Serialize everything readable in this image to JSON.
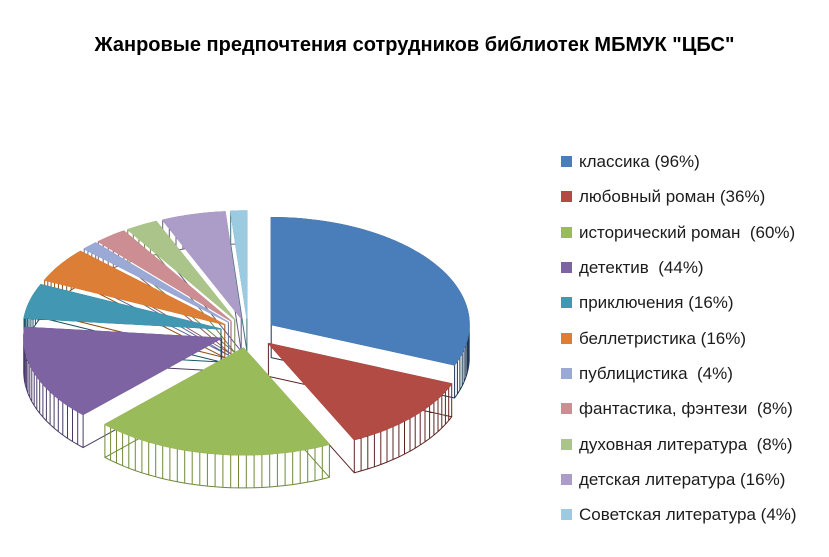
{
  "title": "Жанровые предпочтения сотрудников библиотек МБМУК \"ЦБС\"",
  "chart_data": {
    "type": "pie",
    "style": "3d-exploded",
    "direction": "clockwise",
    "start_angle_deg": 0,
    "legend_position": "right",
    "title": "Жанровые предпочтения сотрудников библиотек МБМУК \"ЦБС\"",
    "slices": [
      {
        "label": "классика",
        "value": 96,
        "legend_label": "классика (96%)",
        "color": "#4A7EBB",
        "side": "#1F3553"
      },
      {
        "label": "любовный роман",
        "value": 36,
        "legend_label": "любовный роман (36%)",
        "color": "#B34B45",
        "side": "#5E2523"
      },
      {
        "label": "исторический роман",
        "value": 60,
        "legend_label": "исторический роман  (60%)",
        "color": "#9ABB59",
        "side": "#6E8A38"
      },
      {
        "label": "детектив",
        "value": 44,
        "legend_label": "детектив  (44%)",
        "color": "#7D63A2",
        "side": "#4A3A68"
      },
      {
        "label": "приключения",
        "value": 16,
        "legend_label": "приключения (16%)",
        "color": "#4297B2",
        "side": "#1B5666"
      },
      {
        "label": "беллетристика",
        "value": 16,
        "legend_label": "беллетристика (16%)",
        "color": "#DC7E35",
        "side": "#8F4E13"
      },
      {
        "label": "публицистика",
        "value": 4,
        "legend_label": "публицистика  (4%)",
        "color": "#9AA9D6",
        "side": "#5F6C99"
      },
      {
        "label": "фантастика, фэнтези",
        "value": 8,
        "legend_label": "фантастика, фэнтези  (8%)",
        "color": "#CD8E93",
        "side": "#8F585D"
      },
      {
        "label": "духовная литература",
        "value": 8,
        "legend_label": "духовная литература  (8%)",
        "color": "#ABC489",
        "side": "#6F8749"
      },
      {
        "label": "детская литература",
        "value": 16,
        "legend_label": "детская литература (16%)",
        "color": "#AC9CC8",
        "side": "#675881"
      },
      {
        "label": "Советская литература",
        "value": 4,
        "legend_label": "Советская литература (4%)",
        "color": "#9CCBE1",
        "side": "#41707F"
      }
    ]
  }
}
